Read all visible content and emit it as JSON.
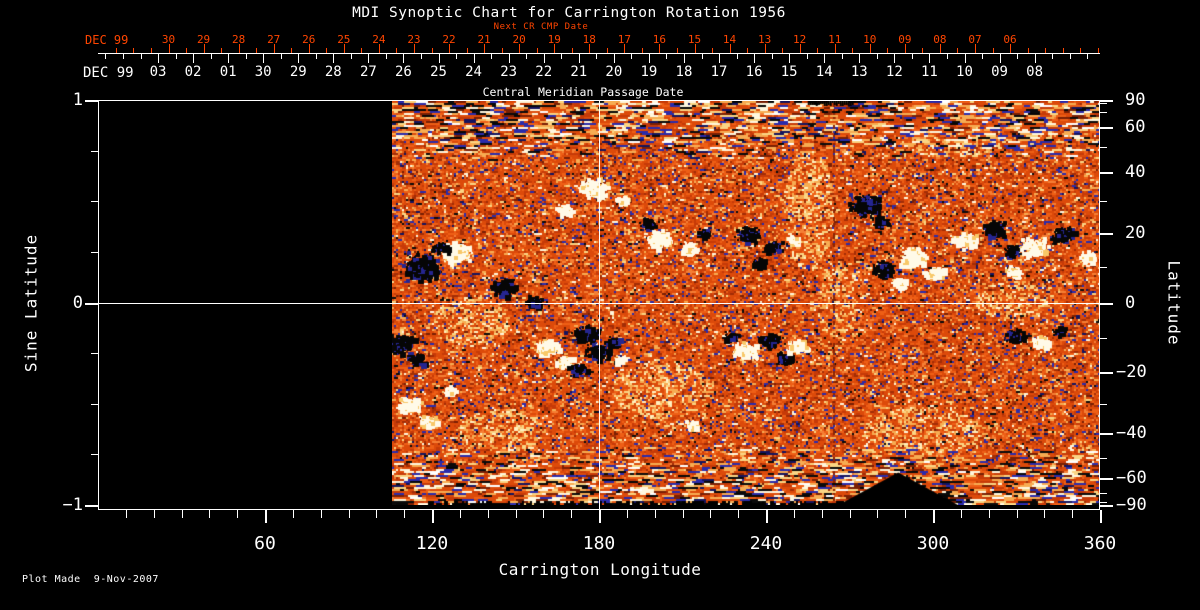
{
  "title": "MDI Synoptic Chart for Carrington Rotation 1956",
  "footer": "Plot Made  9-Nov-2007",
  "colors": {
    "background": "#000000",
    "axis": "#FFFFFF",
    "next_cr_axis": "#FF4500",
    "grid_line": "#FFFFFF"
  },
  "chart_data": {
    "type": "heatmap",
    "title": "MDI Synoptic Chart for Carrington Rotation 1956",
    "xlabel": "Carrington Longitude",
    "ylabel_left": "Sine Latitude",
    "ylabel_right": "Latitude",
    "xlim": [
      0,
      360
    ],
    "ylim_sine_latitude": [
      -1,
      1
    ],
    "x_major_ticks": [
      60,
      120,
      180,
      240,
      300,
      360
    ],
    "x_major_tick_labels": [
      "60",
      "120",
      "180",
      "240",
      "300",
      "360"
    ],
    "x_minor_tick_step_deg": 10,
    "left_major_ticks": [
      1,
      0,
      -1
    ],
    "left_tick_labels": [
      "1",
      "0",
      "−1"
    ],
    "left_minor_ticks": [
      0.75,
      0.5,
      0.25,
      -0.25,
      -0.5,
      -0.75
    ],
    "right_tick_degrees": [
      90,
      60,
      40,
      20,
      0,
      -20,
      -40,
      -60,
      -90
    ],
    "right_tick_labels": [
      "90",
      "60",
      "40",
      "20",
      "0",
      "−20",
      "−40",
      "−60",
      "−90"
    ],
    "right_minor_tick_degrees": [
      80,
      70,
      50,
      30,
      10,
      -10,
      -30,
      -50,
      -70,
      -80
    ],
    "grid_lines": {
      "longitude_deg": 180,
      "sine_latitude": 0
    },
    "top_axis_next_cr": {
      "caption": "Next CR CMP Date",
      "era": "DEC 99",
      "days": [
        "30",
        "29",
        "28",
        "27",
        "26",
        "25",
        "24",
        "23",
        "22",
        "21",
        "20",
        "19",
        "18",
        "17",
        "16",
        "15",
        "14",
        "13",
        "12",
        "11",
        "10",
        "09",
        "08",
        "07",
        "06"
      ]
    },
    "top_axis_cmp": {
      "caption": "Central Meridian Passage Date",
      "era": "DEC 99",
      "days": [
        "03",
        "02",
        "01",
        "30",
        "29",
        "28",
        "27",
        "26",
        "25",
        "24",
        "23",
        "22",
        "21",
        "20",
        "19",
        "18",
        "17",
        "16",
        "15",
        "14",
        "13",
        "12",
        "11",
        "10",
        "09",
        "08"
      ]
    },
    "data_coverage_longitude": [
      106,
      360
    ],
    "palette_base": [
      [
        "#DC4A0A",
        34
      ],
      [
        "#EE5F16",
        16
      ],
      [
        "#C63A08",
        14
      ],
      [
        "#A22D06",
        7
      ],
      [
        "#F57F35",
        8
      ],
      [
        "#F7AC52",
        5
      ],
      [
        "#FAD584",
        3
      ],
      [
        "#791F04",
        3
      ],
      [
        "#2B2BAA",
        4
      ],
      [
        "#14145E",
        2
      ],
      [
        "#FFF6DC",
        2
      ],
      [
        "#0A0A0A",
        2
      ]
    ],
    "palette_streak": [
      [
        "#DC4A0A",
        18
      ],
      [
        "#C63A08",
        11
      ],
      [
        "#EE5F16",
        8
      ],
      [
        "#F7AC52",
        14
      ],
      [
        "#FAD584",
        11
      ],
      [
        "#FFF6DC",
        10
      ],
      [
        "#0A0A0A",
        12
      ],
      [
        "#2B2BAA",
        10
      ],
      [
        "#791F04",
        6
      ],
      [
        "#FFFFFF",
        4
      ],
      [
        "#14145E",
        4
      ]
    ],
    "palette_plage": [
      [
        "#F7AC52",
        30
      ],
      [
        "#FAD584",
        25
      ],
      [
        "#FFF0C0",
        15
      ],
      [
        "#EE5F16",
        20
      ],
      [
        "#DC4A0A",
        10
      ]
    ],
    "active_regions": [
      {
        "lon": 128,
        "sine_lat": 0.25,
        "radius_px": 14,
        "polarity": "white"
      },
      {
        "lon": 116,
        "sine_lat": 0.18,
        "radius_px": 18,
        "polarity": "black"
      },
      {
        "lon": 123,
        "sine_lat": 0.28,
        "radius_px": 8,
        "polarity": "black"
      },
      {
        "lon": 145,
        "sine_lat": 0.08,
        "radius_px": 12,
        "polarity": "black"
      },
      {
        "lon": 156,
        "sine_lat": 0.01,
        "radius_px": 7,
        "polarity": "black"
      },
      {
        "lon": 178,
        "sine_lat": 0.57,
        "radius_px": 13,
        "polarity": "white"
      },
      {
        "lon": 188,
        "sine_lat": 0.51,
        "radius_px": 7,
        "polarity": "white"
      },
      {
        "lon": 167,
        "sine_lat": 0.46,
        "radius_px": 8,
        "polarity": "white"
      },
      {
        "lon": 201,
        "sine_lat": 0.32,
        "radius_px": 12,
        "polarity": "white"
      },
      {
        "lon": 212,
        "sine_lat": 0.27,
        "radius_px": 9,
        "polarity": "white"
      },
      {
        "lon": 197,
        "sine_lat": 0.4,
        "radius_px": 7,
        "polarity": "black"
      },
      {
        "lon": 217,
        "sine_lat": 0.35,
        "radius_px": 6,
        "polarity": "black"
      },
      {
        "lon": 233,
        "sine_lat": 0.34,
        "radius_px": 11,
        "polarity": "black"
      },
      {
        "lon": 242,
        "sine_lat": 0.28,
        "radius_px": 8,
        "polarity": "black"
      },
      {
        "lon": 237,
        "sine_lat": 0.2,
        "radius_px": 7,
        "polarity": "black"
      },
      {
        "lon": 250,
        "sine_lat": 0.31,
        "radius_px": 7,
        "polarity": "white"
      },
      {
        "lon": 275,
        "sine_lat": 0.49,
        "radius_px": 14,
        "polarity": "black"
      },
      {
        "lon": 281,
        "sine_lat": 0.4,
        "radius_px": 8,
        "polarity": "black"
      },
      {
        "lon": 282,
        "sine_lat": 0.17,
        "radius_px": 10,
        "polarity": "black"
      },
      {
        "lon": 293,
        "sine_lat": 0.23,
        "radius_px": 13,
        "polarity": "white"
      },
      {
        "lon": 300,
        "sine_lat": 0.15,
        "radius_px": 9,
        "polarity": "white"
      },
      {
        "lon": 288,
        "sine_lat": 0.1,
        "radius_px": 7,
        "polarity": "white"
      },
      {
        "lon": 311,
        "sine_lat": 0.31,
        "radius_px": 11,
        "polarity": "white"
      },
      {
        "lon": 321,
        "sine_lat": 0.37,
        "radius_px": 11,
        "polarity": "black"
      },
      {
        "lon": 328,
        "sine_lat": 0.26,
        "radius_px": 8,
        "polarity": "black"
      },
      {
        "lon": 336,
        "sine_lat": 0.28,
        "radius_px": 13,
        "polarity": "white"
      },
      {
        "lon": 346,
        "sine_lat": 0.34,
        "radius_px": 11,
        "polarity": "black"
      },
      {
        "lon": 355,
        "sine_lat": 0.23,
        "radius_px": 8,
        "polarity": "white"
      },
      {
        "lon": 328,
        "sine_lat": 0.16,
        "radius_px": 7,
        "polarity": "white"
      },
      {
        "lon": 108,
        "sine_lat": -0.2,
        "radius_px": 13,
        "polarity": "black"
      },
      {
        "lon": 114,
        "sine_lat": -0.28,
        "radius_px": 9,
        "polarity": "black"
      },
      {
        "lon": 111,
        "sine_lat": -0.5,
        "radius_px": 11,
        "polarity": "white"
      },
      {
        "lon": 118,
        "sine_lat": -0.58,
        "radius_px": 8,
        "polarity": "white"
      },
      {
        "lon": 126,
        "sine_lat": -0.43,
        "radius_px": 6,
        "polarity": "white"
      },
      {
        "lon": 161,
        "sine_lat": -0.22,
        "radius_px": 11,
        "polarity": "white"
      },
      {
        "lon": 167,
        "sine_lat": -0.29,
        "radius_px": 8,
        "polarity": "white"
      },
      {
        "lon": 175,
        "sine_lat": -0.15,
        "radius_px": 12,
        "polarity": "black"
      },
      {
        "lon": 179,
        "sine_lat": -0.24,
        "radius_px": 11,
        "polarity": "black"
      },
      {
        "lon": 172,
        "sine_lat": -0.32,
        "radius_px": 8,
        "polarity": "black"
      },
      {
        "lon": 184,
        "sine_lat": -0.19,
        "radius_px": 7,
        "polarity": "black"
      },
      {
        "lon": 187,
        "sine_lat": -0.28,
        "radius_px": 6,
        "polarity": "white"
      },
      {
        "lon": 232,
        "sine_lat": -0.23,
        "radius_px": 11,
        "polarity": "white"
      },
      {
        "lon": 240,
        "sine_lat": -0.18,
        "radius_px": 10,
        "polarity": "black"
      },
      {
        "lon": 246,
        "sine_lat": -0.27,
        "radius_px": 8,
        "polarity": "black"
      },
      {
        "lon": 251,
        "sine_lat": -0.21,
        "radius_px": 9,
        "polarity": "white"
      },
      {
        "lon": 227,
        "sine_lat": -0.16,
        "radius_px": 6,
        "polarity": "black"
      },
      {
        "lon": 213,
        "sine_lat": -0.6,
        "radius_px": 6,
        "polarity": "white"
      },
      {
        "lon": 329,
        "sine_lat": -0.16,
        "radius_px": 9,
        "polarity": "black"
      },
      {
        "lon": 338,
        "sine_lat": -0.19,
        "radius_px": 8,
        "polarity": "white"
      },
      {
        "lon": 345,
        "sine_lat": -0.14,
        "radius_px": 6,
        "polarity": "black"
      }
    ],
    "plage_zones": [
      {
        "lon": 255,
        "sine_lat": 0.46,
        "rlon": 9,
        "rsin": 0.3
      },
      {
        "lon": 265,
        "sine_lat": 0.01,
        "rlon": 7,
        "rsin": 0.2
      },
      {
        "lon": 134,
        "sine_lat": -0.09,
        "rlon": 14,
        "rsin": 0.12
      },
      {
        "lon": 202,
        "sine_lat": -0.43,
        "rlon": 18,
        "rsin": 0.14
      },
      {
        "lon": 145,
        "sine_lat": -0.63,
        "rlon": 16,
        "rsin": 0.11
      },
      {
        "lon": 296,
        "sine_lat": -0.63,
        "rlon": 21,
        "rsin": 0.12
      },
      {
        "lon": 328,
        "sine_lat": 0.01,
        "rlon": 13,
        "rsin": 0.1
      },
      {
        "lon": 181,
        "sine_lat": 0.9,
        "rlon": 21,
        "rsin": 0.07
      },
      {
        "lon": 306,
        "sine_lat": 0.8,
        "rlon": 18,
        "rsin": 0.08
      }
    ],
    "seam": {
      "lon": 264,
      "top_streak_lon": [
        255,
        272
      ],
      "bottom_wedge_lon": [
        266,
        309
      ],
      "bottom_wedge_apex_sine_lat": -0.84
    }
  }
}
